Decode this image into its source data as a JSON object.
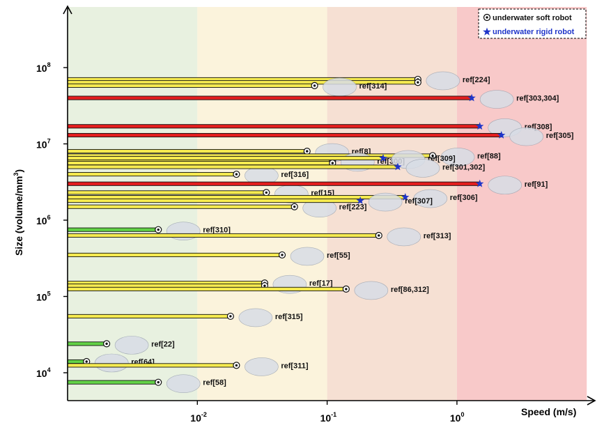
{
  "chart_data": {
    "type": "bar",
    "orientation": "horizontal",
    "xlabel": "Speed (m/s)",
    "ylabel": "Size (volume/mm",
    "ylabel_sup": "3",
    "ylabel_close": ")",
    "x_scale": "log",
    "y_scale": "log",
    "xlim": [
      0.001,
      10
    ],
    "ylim": [
      4500,
      200000000
    ],
    "x_ticks": [
      {
        "value": 0.01,
        "base": "10",
        "exp": "-2"
      },
      {
        "value": 0.1,
        "base": "10",
        "exp": "-1"
      },
      {
        "value": 1,
        "base": "10",
        "exp": "0"
      }
    ],
    "y_ticks": [
      {
        "value": 10000,
        "base": "10",
        "exp": "4"
      },
      {
        "value": 100000,
        "base": "10",
        "exp": "5"
      },
      {
        "value": 1000000,
        "base": "10",
        "exp": "6"
      },
      {
        "value": 10000000,
        "base": "10",
        "exp": "7"
      },
      {
        "value": 100000000,
        "base": "10",
        "exp": "8"
      }
    ],
    "speed_bands": [
      {
        "from": 0.001,
        "to": 0.01,
        "color": "#e8f1e0"
      },
      {
        "from": 0.01,
        "to": 0.1,
        "color": "#fbf3dc"
      },
      {
        "from": 0.1,
        "to": 1,
        "color": "#f6e0d3"
      },
      {
        "from": 1,
        "to": 10,
        "color": "#f8c9c9"
      }
    ],
    "legend": {
      "placement": "top-right",
      "entries": [
        {
          "label": "underwater soft robot",
          "marker": "circle-dot",
          "color": "#000000"
        },
        {
          "label": "underwater rigid robot",
          "marker": "star",
          "color": "#1f35c9"
        }
      ]
    },
    "colors": {
      "soft_bar_yellow": "#f5ea50",
      "soft_bar_green": "#62d246",
      "rigid_bar": "#e41e1e",
      "rigid_marker": "#1f35c9"
    },
    "series": [
      {
        "name": "underwater soft robot",
        "points": [
          {
            "ref": "ref[224]",
            "size": 70000000,
            "speed": 0.5,
            "bar": "yellow"
          },
          {
            "ref": "",
            "size": 64000000,
            "speed": 0.5,
            "bar": "yellow"
          },
          {
            "ref": "ref[314]",
            "size": 58000000,
            "speed": 0.08,
            "bar": "yellow"
          },
          {
            "ref": "ref[8]",
            "size": 8000000,
            "speed": 0.07,
            "bar": "yellow"
          },
          {
            "ref": "ref[88]",
            "size": 7000000,
            "speed": 0.65,
            "bar": "yellow"
          },
          {
            "ref": "ref[300]",
            "size": 6000000,
            "speed": 0.11,
            "bar": "yellow"
          },
          {
            "ref": "",
            "size": 5600000,
            "speed": 0.11,
            "bar": "yellow"
          },
          {
            "ref": "ref[316]",
            "size": 4000000,
            "speed": 0.02,
            "bar": "yellow"
          },
          {
            "ref": "ref[15]",
            "size": 2300000,
            "speed": 0.034,
            "bar": "yellow"
          },
          {
            "ref": "ref[223]",
            "size": 1500000,
            "speed": 0.056,
            "bar": "yellow"
          },
          {
            "ref": "ref[310]",
            "size": 750000,
            "speed": 0.005,
            "bar": "green"
          },
          {
            "ref": "ref[313]",
            "size": 630000,
            "speed": 0.25,
            "bar": "yellow"
          },
          {
            "ref": "ref[55]",
            "size": 350000,
            "speed": 0.045,
            "bar": "yellow"
          },
          {
            "ref": "ref[17]",
            "size": 150000,
            "speed": 0.033,
            "bar": "yellow"
          },
          {
            "ref": "",
            "size": 138000,
            "speed": 0.033,
            "bar": "yellow"
          },
          {
            "ref": "ref[86,312]",
            "size": 125000,
            "speed": 0.14,
            "bar": "yellow"
          },
          {
            "ref": "ref[315]",
            "size": 55000,
            "speed": 0.018,
            "bar": "yellow"
          },
          {
            "ref": "ref[22]",
            "size": 24000,
            "speed": 0.002,
            "bar": "green"
          },
          {
            "ref": "ref[64]",
            "size": 14000,
            "speed": 0.0014,
            "bar": "green"
          },
          {
            "ref": "ref[311]",
            "size": 12500,
            "speed": 0.02,
            "bar": "yellow"
          },
          {
            "ref": "ref[58]",
            "size": 7500,
            "speed": 0.005,
            "bar": "green"
          }
        ]
      },
      {
        "name": "underwater rigid robot",
        "points": [
          {
            "ref": "ref[303,304]",
            "size": 40000000,
            "speed": 1.3,
            "bar": "red"
          },
          {
            "ref": "ref[308]",
            "size": 17000000,
            "speed": 1.5,
            "bar": "red"
          },
          {
            "ref": "ref[305]",
            "size": 13000000,
            "speed": 2.2,
            "bar": "red"
          },
          {
            "ref": "ref[309]",
            "size": 6500000,
            "speed": 0.27,
            "bar": "yellow"
          },
          {
            "ref": "ref[301,302]",
            "size": 5000000,
            "speed": 0.35,
            "bar": "yellow"
          },
          {
            "ref": "ref[91]",
            "size": 3000000,
            "speed": 1.5,
            "bar": "red"
          },
          {
            "ref": "ref[306]",
            "size": 2000000,
            "speed": 0.4,
            "bar": "yellow"
          },
          {
            "ref": "ref[307]",
            "size": 1800000,
            "speed": 0.18,
            "bar": "yellow"
          }
        ]
      }
    ]
  }
}
